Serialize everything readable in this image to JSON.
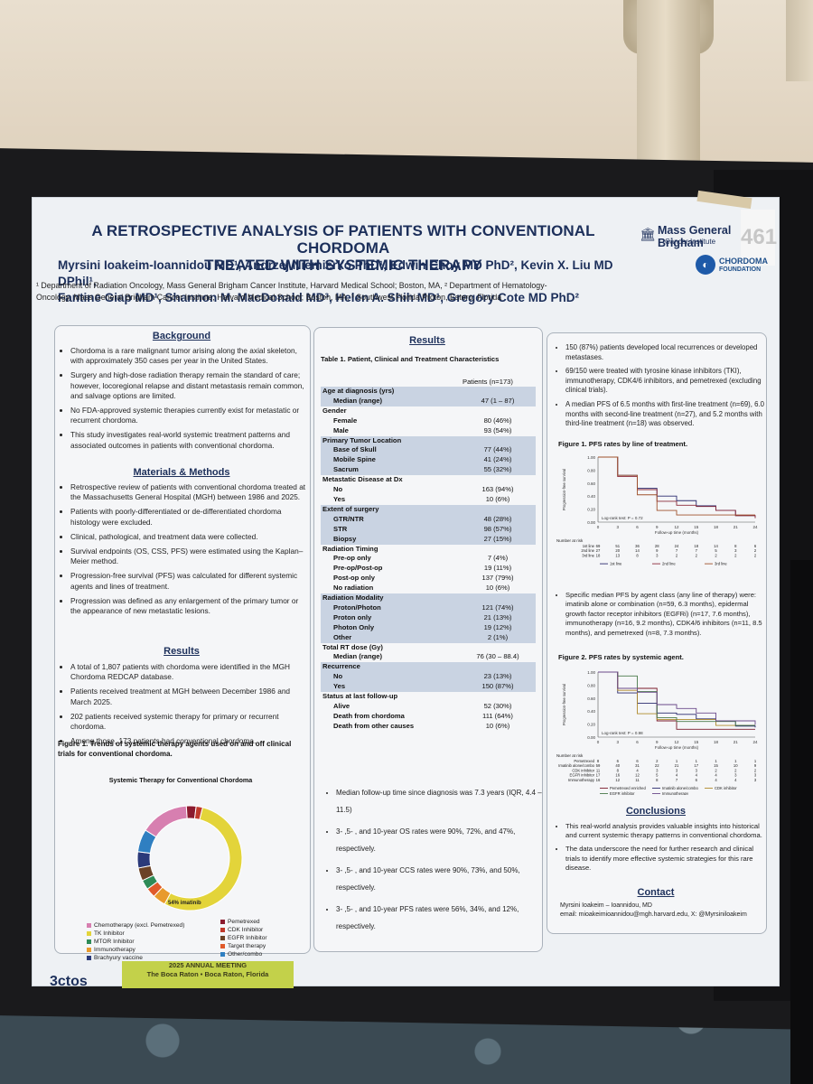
{
  "poster": {
    "title_line1": "A RETROSPECTIVE ANALYSIS OF PATIENTS WITH CONVENTIONAL CHORDOMA",
    "title_line2": "TREATED WITH SYSTEMIC THERAPY",
    "authors_line1": "Myrsini Ioakeim-Ioannidou MD¹, Andrzej Niemierko PhD¹, Edwin Choy MD PhD², Kevin X. Liu MD DPhil¹,",
    "authors_line2": "Fantine Giap MD¹, Shannon M. MacDonald MD³, Helen A. Shih MD¹, Gregory Cote MD PhD²",
    "affil_line1": "¹ Department of Radiation Oncology, Mass General Brigham Cancer Institute, Harvard Medical School; Boston, MA, ² Department of Hematology-",
    "affil_line2": "Oncology, Mass General Brigham Cancer Institute, Harvard Medical School; Boston, MA, ³ Southwest Florida Proton, Estero, Florida",
    "logo_mgb_name": "Mass General Brigham",
    "logo_mgb_sub": "Cancer Institute",
    "logo_chordoma_1": "CHORDOMA",
    "logo_chordoma_2": "FOUNDATION",
    "booth_number": "461"
  },
  "left": {
    "background_heading": "Background",
    "background": [
      "Chordoma is a rare malignant tumor arising along the axial skeleton, with approximately 350 cases per year in the United States.",
      "Surgery and high-dose radiation therapy remain the standard of care; however, locoregional relapse and distant metastasis remain common, and salvage options are limited.",
      "No FDA-approved systemic therapies currently exist for metastatic or recurrent chordoma.",
      "This study investigates real-world systemic treatment patterns and associated outcomes in patients with conventional chordoma."
    ],
    "methods_heading": "Materials & Methods",
    "methods": [
      "Retrospective review of patients with conventional chordoma treated at the Massachusetts General Hospital (MGH) between 1986 and 2025.",
      "Patients with poorly-differentiated or de-differentiated chordoma histology were excluded.",
      "Clinical, pathological, and treatment data were collected.",
      "Survival endpoints (OS, CSS, PFS) were estimated using the Kaplan–Meier method.",
      "Progression-free survival (PFS) was calculated for different systemic agents and lines of treatment.",
      "Progression was defined as any enlargement of the primary tumor or the appearance of new metastatic lesions."
    ],
    "results_heading": "Results",
    "results": [
      "A total of 1,807 patients with chordoma were identified in the MGH Chordoma REDCAP database.",
      "Patients received treatment at MGH  between December 1986 and March 2025.",
      "202 patients received systemic therapy for primary or recurrent chordoma.",
      "Among those, 173 patients had conventional chordoma."
    ],
    "fig1_caption": "Figure 1. Trends of systemic therapy agents used on and off clinical trials for conventional chordoma.",
    "donut_title": "Systemic Therapy for Conventional Chordoma",
    "donut_label": "54% imatinib",
    "legend": [
      {
        "label": "Chemotherapy (excl. Pemetrexed)",
        "color": "#d77fb0"
      },
      {
        "label": "Pemetrexed",
        "color": "#8b1a2e"
      },
      {
        "label": "TK Inhibitor",
        "color": "#e3d43a"
      },
      {
        "label": "CDK Inhibitor",
        "color": "#c0392b"
      },
      {
        "label": "MTOR Inhibitor",
        "color": "#2e8b57"
      },
      {
        "label": "EGFR Inhibitor",
        "color": "#6b4226"
      },
      {
        "label": "Immunotherapy",
        "color": "#e89a2c"
      },
      {
        "label": "Target therapy",
        "color": "#e05a2a"
      },
      {
        "label": "Brachyury vaccine",
        "color": "#2b3a7a"
      },
      {
        "label": "Other/combo",
        "color": "#2f7fc1"
      }
    ]
  },
  "middle": {
    "results_heading": "Results",
    "table_caption": "Table 1. Patient, Clinical and Treatment Characteristics",
    "table_header": "Patients (n=173)",
    "rows": [
      {
        "label": "Age at diagnosis (yrs)",
        "value": "",
        "kind": "h",
        "shade": true
      },
      {
        "label": "Median (range)",
        "value": "47 (1 – 87)",
        "kind": "i",
        "shade": true
      },
      {
        "label": "Gender",
        "value": "",
        "kind": "h",
        "shade": false
      },
      {
        "label": "Female",
        "value": "80 (46%)",
        "kind": "i",
        "shade": false
      },
      {
        "label": "Male",
        "value": "93 (54%)",
        "kind": "i",
        "shade": false
      },
      {
        "label": "Primary Tumor Location",
        "value": "",
        "kind": "h",
        "shade": true
      },
      {
        "label": "Base of Skull",
        "value": "77 (44%)",
        "kind": "i",
        "shade": true
      },
      {
        "label": "Mobile Spine",
        "value": "41 (24%)",
        "kind": "i",
        "shade": true
      },
      {
        "label": "Sacrum",
        "value": "55 (32%)",
        "kind": "i",
        "shade": true
      },
      {
        "label": "Metastatic Disease at Dx",
        "value": "",
        "kind": "h",
        "shade": false
      },
      {
        "label": "No",
        "value": "163 (94%)",
        "kind": "i",
        "shade": false
      },
      {
        "label": "Yes",
        "value": "10 (6%)",
        "kind": "i",
        "shade": false
      },
      {
        "label": "Extent of surgery",
        "value": "",
        "kind": "h",
        "shade": true
      },
      {
        "label": "GTR/NTR",
        "value": "48 (28%)",
        "kind": "i",
        "shade": true
      },
      {
        "label": "STR",
        "value": "98 (57%)",
        "kind": "i",
        "shade": true
      },
      {
        "label": "Biopsy",
        "value": "27 (15%)",
        "kind": "i",
        "shade": true
      },
      {
        "label": "Radiation Timing",
        "value": "",
        "kind": "h",
        "shade": false
      },
      {
        "label": "Pre-op only",
        "value": "7 (4%)",
        "kind": "i",
        "shade": false
      },
      {
        "label": "Pre-op/Post-op",
        "value": "19 (11%)",
        "kind": "i",
        "shade": false
      },
      {
        "label": "Post-op only",
        "value": "137 (79%)",
        "kind": "i",
        "shade": false
      },
      {
        "label": "No radiation",
        "value": "10 (6%)",
        "kind": "i",
        "shade": false
      },
      {
        "label": "Radiation Modality",
        "value": "",
        "kind": "h",
        "shade": true
      },
      {
        "label": "Proton/Photon",
        "value": "121 (74%)",
        "kind": "i",
        "shade": true
      },
      {
        "label": "Proton only",
        "value": "21 (13%)",
        "kind": "i",
        "shade": true
      },
      {
        "label": "Photon Only",
        "value": "19 (12%)",
        "kind": "i",
        "shade": true
      },
      {
        "label": "Other",
        "value": "2 (1%)",
        "kind": "i",
        "shade": true
      },
      {
        "label": "Total RT dose (Gy)",
        "value": "",
        "kind": "h",
        "shade": false
      },
      {
        "label": "Median (range)",
        "value": "76 (30 – 88.4)",
        "kind": "i",
        "shade": false
      },
      {
        "label": "Recurrence",
        "value": "",
        "kind": "h",
        "shade": true
      },
      {
        "label": "No",
        "value": "23 (13%)",
        "kind": "i",
        "shade": true
      },
      {
        "label": "Yes",
        "value": "150 (87%)",
        "kind": "i",
        "shade": true
      },
      {
        "label": "Status at last follow-up",
        "value": "",
        "kind": "h",
        "shade": false
      },
      {
        "label": "Alive",
        "value": "52 (30%)",
        "kind": "i",
        "shade": false
      },
      {
        "label": "Death from chordoma",
        "value": "111 (64%)",
        "kind": "i",
        "shade": false
      },
      {
        "label": "Death from other causes",
        "value": "10 (6%)",
        "kind": "i",
        "shade": false
      }
    ],
    "bullets": [
      "Median follow-up time since diagnosis was 7.3 years (IQR, 4.4 – 11.5)",
      "3- ,5- , and 10-year OS rates were 90%, 72%, and 47%, respectively.",
      "3- ,5- , and 10-year CCS rates were 90%, 73%, and 50%, respectively.",
      "3- ,5- , and 10-year PFS rates were 56%, 34%, and 12%, respectively."
    ]
  },
  "right": {
    "bullets_top": [
      "150 (87%) patients developed local recurrences or developed metastases.",
      "69/150 were treated with tyrosine kinase inhibitors (TKI), immunotherapy, CDK4/6 inhibitors, and pemetrexed (excluding clinical trials).",
      "A median PFS of 6.5 months with first-line treatment (n=69), 6.0 months with second-line treatment (n=27), and 5.2 months with third-line treatment (n=18) was observed."
    ],
    "fig1_caption": "Figure 1. PFS rates by line of treatment.",
    "fig1_ylabel": "Progression-free survival",
    "fig1_xlabel": "Follow-up time (months)",
    "fig1_logrank": "Log-rank test: P = 0.72",
    "fig1_risk_title": "Number at risk",
    "fig1_risk_rows": [
      {
        "label": "1st line",
        "values": [
          "69",
          "51",
          "36",
          "28",
          "24",
          "18",
          "14",
          "8",
          "6"
        ]
      },
      {
        "label": "2nd line",
        "values": [
          "27",
          "20",
          "14",
          "9",
          "7",
          "7",
          "5",
          "3",
          "2"
        ]
      },
      {
        "label": "3rd line",
        "values": [
          "18",
          "13",
          "8",
          "3",
          "2",
          "2",
          "2",
          "2",
          "2"
        ]
      }
    ],
    "fig1_legend": [
      "1st line",
      "2nd line",
      "3rd line"
    ],
    "bullets_mid": [
      "Specific median PFS by agent class (any line of therapy) were: imatinib alone or combination (n=59, 6.3 months), epidermal growth factor receptor inhibitors (EGFRi) (n=17, 7.6 months), immunotherapy (n=16, 9.2 months), CDK4/6 inhibitors (n=11, 8.5 months), and pemetrexed (n=8, 7.3 months)."
    ],
    "fig2_caption": "Figure 2. PFS rates by systemic agent.",
    "fig2_logrank": "Log-rank test: P = 0.98",
    "fig2_xlabel": "Follow-up time (months)",
    "fig2_risk_title": "Number at risk",
    "fig2_risk_rows": [
      {
        "label": "Pemetrexed",
        "values": [
          "8",
          "6",
          "6",
          "2",
          "1",
          "1",
          "1",
          "1",
          "1"
        ]
      },
      {
        "label": "Imatinib alone/combo",
        "values": [
          "59",
          "40",
          "31",
          "22",
          "21",
          "17",
          "15",
          "10",
          "9"
        ]
      },
      {
        "label": "CDK inhibitor",
        "values": [
          "11",
          "8",
          "4",
          "3",
          "3",
          "3",
          "2",
          "2",
          "2"
        ]
      },
      {
        "label": "EGFR inhibitor",
        "values": [
          "17",
          "16",
          "12",
          "5",
          "4",
          "4",
          "4",
          "3",
          "3"
        ]
      },
      {
        "label": "Immunotherapy",
        "values": [
          "16",
          "12",
          "11",
          "8",
          "7",
          "6",
          "4",
          "4",
          "3"
        ]
      }
    ],
    "fig2_legend": [
      "Pemetrexed enriched",
      "Imatinib alone/combo",
      "CDK inhibitor",
      "EGFR inhibitor",
      "Immunotherapy"
    ],
    "conclusions_heading": "Conclusions",
    "conclusions": [
      "This real-world analysis provides valuable insights into historical and current systemic therapy patterns in conventional chordoma.",
      "The data underscore the need for further research and clinical trials to identify more effective systemic strategies for this rare disease."
    ],
    "contact_heading": "Contact",
    "contact_line1": "Myrsini Ioakeim – Ioannidou, MD",
    "contact_line2": "email: mioakeimioannidou@mgh.harvard.edu, X: @Myrsiniloakeim"
  },
  "footer": {
    "logo": "3ctos",
    "meeting_line1": "2025 ANNUAL MEETING",
    "meeting_line2": "The Boca Raton  •  Boca Raton, Florida"
  },
  "chart_data": [
    {
      "type": "pie",
      "title": "Systemic Therapy for Conventional Chordoma",
      "categories": [
        "TK Inhibitor",
        "Immunotherapy",
        "Target therapy",
        "MTOR Inhibitor",
        "EGFR Inhibitor",
        "Brachyury vaccine",
        "Other/combo",
        "Chemotherapy (excl. Pemetrexed)",
        "Pemetrexed",
        "CDK Inhibitor"
      ],
      "values": [
        54,
        4,
        3,
        3,
        4,
        5,
        7,
        15,
        3,
        2
      ],
      "colors": [
        "#e3d43a",
        "#e89a2c",
        "#e05a2a",
        "#2e8b57",
        "#6b4226",
        "#2b3a7a",
        "#2f7fc1",
        "#d77fb0",
        "#8b1a2e",
        "#c0392b"
      ]
    },
    {
      "type": "line",
      "title": "Figure 1. PFS rates by line of treatment.",
      "xlabel": "Follow-up time (months)",
      "ylabel": "Progression-free survival",
      "xlim": [
        0,
        24
      ],
      "ylim": [
        0,
        1
      ],
      "x": [
        0,
        3,
        6,
        9,
        12,
        15,
        18,
        21,
        24
      ],
      "series": [
        {
          "name": "1st line",
          "color": "#2b2b6e",
          "values": [
            1.0,
            0.72,
            0.52,
            0.4,
            0.33,
            0.25,
            0.18,
            0.1,
            0.08
          ]
        },
        {
          "name": "2nd line",
          "color": "#8b2a3a",
          "values": [
            1.0,
            0.7,
            0.5,
            0.32,
            0.26,
            0.24,
            0.18,
            0.1,
            0.06
          ]
        },
        {
          "name": "3rd line",
          "color": "#a0522d",
          "values": [
            1.0,
            0.72,
            0.42,
            0.18,
            0.11,
            0.11,
            0.11,
            0.11,
            0.11
          ]
        }
      ]
    },
    {
      "type": "line",
      "title": "Figure 2. PFS rates by systemic agent.",
      "xlabel": "Follow-up time (months)",
      "ylabel": "Progression-free survival",
      "xlim": [
        0,
        24
      ],
      "ylim": [
        0,
        1
      ],
      "x": [
        0,
        3,
        6,
        9,
        12,
        15,
        18,
        21,
        24
      ],
      "series": [
        {
          "name": "Pemetrexed enriched",
          "color": "#7a1a2a",
          "values": [
            1.0,
            0.75,
            0.75,
            0.25,
            0.12,
            0.12,
            0.12,
            0.12,
            0.12
          ]
        },
        {
          "name": "Imatinib alone/combo",
          "color": "#2b2b6e",
          "values": [
            1.0,
            0.68,
            0.52,
            0.37,
            0.35,
            0.28,
            0.25,
            0.17,
            0.15
          ]
        },
        {
          "name": "CDK inhibitor",
          "color": "#b08a2a",
          "values": [
            1.0,
            0.72,
            0.36,
            0.27,
            0.27,
            0.27,
            0.18,
            0.18,
            0.18
          ]
        },
        {
          "name": "EGFR inhibitor",
          "color": "#4a7a4a",
          "values": [
            1.0,
            0.94,
            0.7,
            0.3,
            0.24,
            0.24,
            0.24,
            0.18,
            0.18
          ]
        },
        {
          "name": "Immunotherapy",
          "color": "#6b4a8a",
          "values": [
            1.0,
            0.75,
            0.69,
            0.5,
            0.44,
            0.37,
            0.25,
            0.25,
            0.19
          ]
        }
      ]
    }
  ]
}
